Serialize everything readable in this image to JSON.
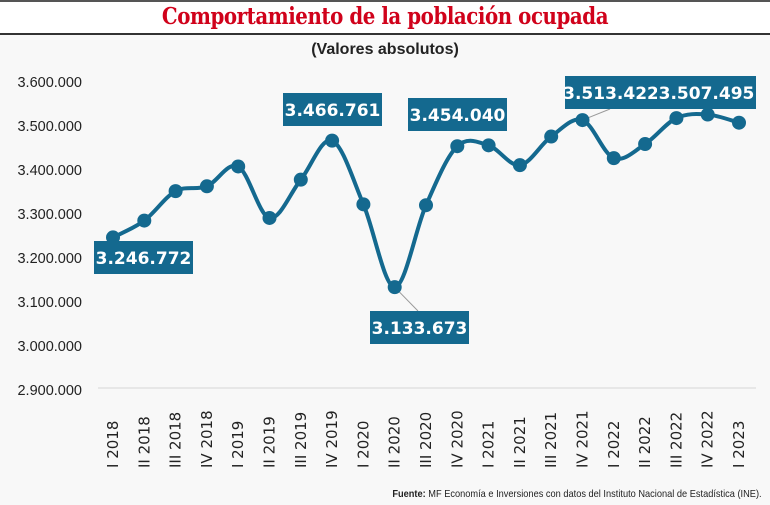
{
  "header": {
    "title": "Comportamiento de la población ocupada",
    "subtitle": "(Valores absolutos)"
  },
  "source": {
    "label": "Fuente:",
    "text": "MF Economía e Inversiones con datos del Instituto Nacional de Estadística (INE)."
  },
  "colors": {
    "title": "#d0021b",
    "series": "#14698f",
    "label_box": "#14698f",
    "background": "#f8f8f8"
  },
  "chart_data": {
    "type": "line",
    "title": "Comportamiento de la población ocupada",
    "subtitle": "(Valores absolutos)",
    "xlabel": "",
    "ylabel": "",
    "ylim": [
      2900000,
      3600000
    ],
    "yticks": [
      2900000,
      3000000,
      3100000,
      3200000,
      3300000,
      3400000,
      3500000,
      3600000
    ],
    "ytick_labels": [
      "2.900.000",
      "3.000.000",
      "3.100.000",
      "3.200.000",
      "3.300.000",
      "3.400.000",
      "3.500.000",
      "3.600.000"
    ],
    "grid": false,
    "legend": "none",
    "smooth": true,
    "categories": [
      "I 2018",
      "II 2018",
      "III 2018",
      "IV 2018",
      "I 2019",
      "II 2019",
      "III 2019",
      "IV 2019",
      "I 2020",
      "II 2020",
      "III 2020",
      "IV 2020",
      "I 2021",
      "II 2021",
      "III 2021",
      "IV 2021",
      "I 2022",
      "II 2022",
      "III 2022",
      "IV 2022",
      "I 2023"
    ],
    "series": [
      {
        "name": "Población ocupada",
        "values": [
          3246772,
          3285000,
          3352000,
          3363000,
          3408000,
          3291000,
          3378000,
          3466761,
          3322000,
          3133673,
          3320000,
          3454040,
          3456000,
          3411000,
          3476000,
          3513422,
          3427000,
          3459000,
          3518000,
          3526000,
          3507495
        ]
      }
    ],
    "annotations": [
      {
        "index": 0,
        "text": "3.246.772",
        "position": "below"
      },
      {
        "index": 7,
        "text": "3.466.761",
        "position": "above"
      },
      {
        "index": 9,
        "text": "3.133.673",
        "position": "below-right"
      },
      {
        "index": 11,
        "text": "3.454.040",
        "position": "above"
      },
      {
        "index": 15,
        "text": "3.513.422",
        "position": "above-right"
      },
      {
        "index": 20,
        "text": "3.507.495",
        "position": "above"
      }
    ]
  }
}
